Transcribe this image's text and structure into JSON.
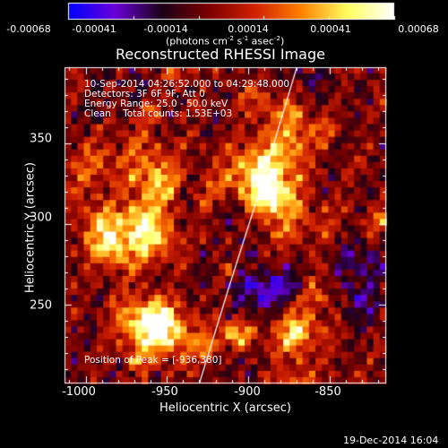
{
  "colorbar": {
    "ticks": [
      "-0.00068",
      "-0.00041",
      "-0.00014",
      "0.00014",
      "0.00041",
      "0.00068"
    ],
    "units_text": "(photons cm",
    "units_sup1": "-2",
    "units_mid": " s",
    "units_sup2": "-1",
    "units_end": " asec",
    "units_sup3": "-2",
    "units_close": ")",
    "colors": [
      "#0000ff",
      "#6a00d8",
      "#1a0018",
      "#7a0000",
      "#d02000",
      "#ff8000",
      "#ffff60",
      "#ffffff"
    ]
  },
  "chart_data": {
    "type": "heatmap",
    "title": "Reconstructed RHESSI Image",
    "xlabel": "Heliocentric X (arcsec)",
    "ylabel": "Heliocentric Y (arcsec)",
    "xlim": [
      -1013,
      -815
    ],
    "ylim": [
      201,
      397
    ],
    "x_ticks": [
      "-1000",
      "-950",
      "-900",
      "-850"
    ],
    "y_ticks": [
      "250",
      "300",
      "350"
    ],
    "value_range": [
      -0.00068,
      0.00068
    ],
    "limb_curve": [
      [
        -930,
        201
      ],
      [
        -912,
        260
      ],
      [
        -893,
        320
      ],
      [
        -870,
        397
      ]
    ],
    "annotations": {
      "line1": "10-Sep-2014 04:26:52.000 to 04:29:48.000",
      "line2": "Detectors: 3F 6F 9F, Att 0",
      "line3": "Energy Range: 25.0 - 50.0 keV",
      "line4": "Clean    Total counts: 1.53E+03",
      "peak": "Position of Peak = [-936,380]"
    }
  },
  "footer": {
    "timestamp": "19-Dec-2014 16:04"
  }
}
